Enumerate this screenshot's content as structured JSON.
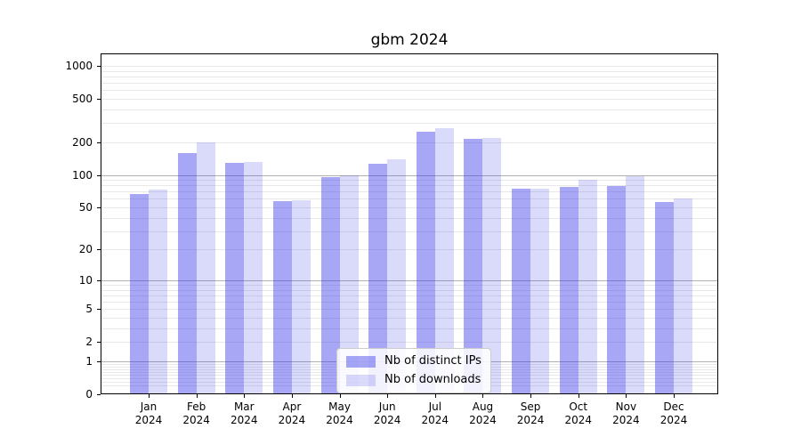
{
  "figure": {
    "background": "#ffffff"
  },
  "chart_data": {
    "type": "bar",
    "title": "gbm 2024",
    "categories": [
      "Jan",
      "Feb",
      "Mar",
      "Apr",
      "May",
      "Jun",
      "Jul",
      "Aug",
      "Sep",
      "Oct",
      "Nov",
      "Dec"
    ],
    "year_label": "2024",
    "series": [
      {
        "name": "Nb of distinct IPs",
        "color": "rgba(60,60,235,0.45)",
        "values": [
          67,
          160,
          128,
          57,
          96,
          127,
          250,
          214,
          74,
          78,
          79,
          56
        ]
      },
      {
        "name": "Nb of downloads",
        "color": "rgba(60,60,235,0.19)",
        "values": [
          73,
          200,
          131,
          58,
          100,
          140,
          268,
          220,
          75,
          90,
          97,
          60
        ]
      }
    ],
    "yscale": "log1p",
    "ylim": [
      0,
      1300
    ],
    "yticks": [
      1000,
      500,
      200,
      100,
      50,
      20,
      10,
      5,
      2,
      1,
      0
    ],
    "grid": {
      "major_values": [
        1,
        10,
        100
      ],
      "minor_values": [
        0.2,
        0.3,
        0.4,
        0.5,
        0.6,
        0.7,
        0.8,
        0.9,
        2,
        3,
        4,
        5,
        6,
        7,
        8,
        9,
        20,
        30,
        40,
        50,
        60,
        70,
        80,
        90,
        200,
        300,
        400,
        500,
        600,
        700,
        800,
        900,
        1000
      ],
      "major_color": "#b0b0b0",
      "minor_color": "#e8e8e8"
    },
    "legend_position": "lower center",
    "axis_color": "#000000",
    "text_color": "#000000"
  }
}
